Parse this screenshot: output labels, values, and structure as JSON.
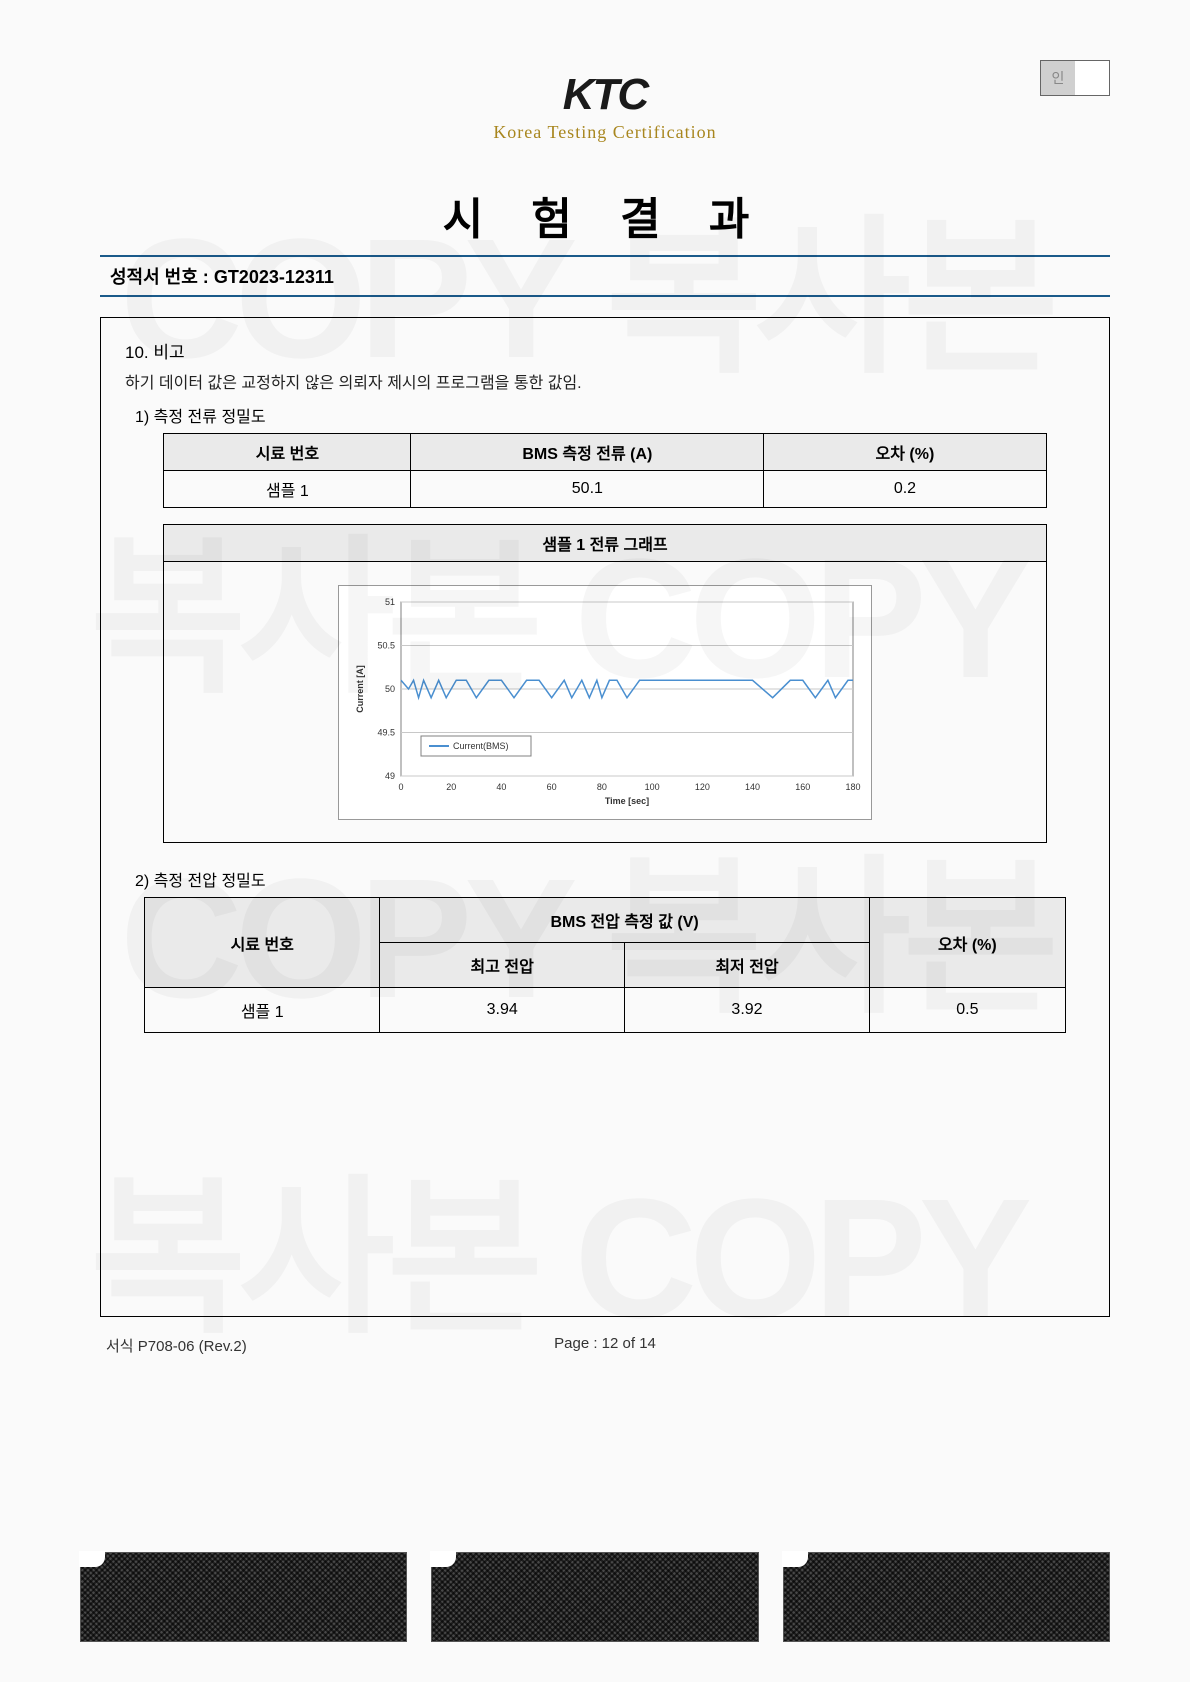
{
  "header": {
    "logo_main": "KTC",
    "logo_sub": "Korea Testing Certification",
    "stamp_label": "인"
  },
  "title": "시 험 결 과",
  "report": {
    "label": "성적서 번호 :",
    "number": "GT2023-12311"
  },
  "section10": {
    "heading": "10. 비고",
    "note": "하기 데이터 값은 교정하지 않은 의뢰자 제시의 프로그램을 통한 값임.",
    "sub1": {
      "title": "1) 측정 전류 정밀도",
      "table": {
        "headers": [
          "시료 번호",
          "BMS 측정 전류 (A)",
          "오차 (%)"
        ],
        "row": [
          "샘플 1",
          "50.1",
          "0.2"
        ]
      },
      "chart": {
        "title": "샘플 1 전류 그래프",
        "type": "line",
        "ylabel": "Current [A]",
        "xlabel": "Time [sec]",
        "xlim": [
          0,
          180
        ],
        "xticks": [
          0,
          20,
          40,
          60,
          80,
          100,
          120,
          140,
          160,
          180
        ],
        "ylim": [
          49,
          51
        ],
        "yticks": [
          49,
          49.5,
          50,
          50.5,
          51
        ],
        "legend": "Current(BMS)",
        "line_color": "#4a8fd0",
        "grid_color": "#c8c8c8",
        "axis_color": "#808080",
        "background_color": "#ffffff",
        "tick_fontsize": 9,
        "label_fontsize": 9,
        "legend_fontsize": 9,
        "series": [
          {
            "x": 0,
            "y": 50.1
          },
          {
            "x": 3,
            "y": 50.0
          },
          {
            "x": 5,
            "y": 50.1
          },
          {
            "x": 7,
            "y": 49.9
          },
          {
            "x": 9,
            "y": 50.1
          },
          {
            "x": 12,
            "y": 49.9
          },
          {
            "x": 15,
            "y": 50.1
          },
          {
            "x": 18,
            "y": 49.9
          },
          {
            "x": 22,
            "y": 50.1
          },
          {
            "x": 26,
            "y": 50.1
          },
          {
            "x": 30,
            "y": 49.9
          },
          {
            "x": 35,
            "y": 50.1
          },
          {
            "x": 40,
            "y": 50.1
          },
          {
            "x": 45,
            "y": 49.9
          },
          {
            "x": 50,
            "y": 50.1
          },
          {
            "x": 55,
            "y": 50.1
          },
          {
            "x": 60,
            "y": 49.9
          },
          {
            "x": 65,
            "y": 50.1
          },
          {
            "x": 68,
            "y": 49.9
          },
          {
            "x": 72,
            "y": 50.1
          },
          {
            "x": 75,
            "y": 49.9
          },
          {
            "x": 78,
            "y": 50.1
          },
          {
            "x": 80,
            "y": 49.9
          },
          {
            "x": 83,
            "y": 50.1
          },
          {
            "x": 86,
            "y": 50.1
          },
          {
            "x": 90,
            "y": 49.9
          },
          {
            "x": 95,
            "y": 50.1
          },
          {
            "x": 100,
            "y": 50.1
          },
          {
            "x": 110,
            "y": 50.1
          },
          {
            "x": 120,
            "y": 50.1
          },
          {
            "x": 130,
            "y": 50.1
          },
          {
            "x": 140,
            "y": 50.1
          },
          {
            "x": 148,
            "y": 49.9
          },
          {
            "x": 155,
            "y": 50.1
          },
          {
            "x": 160,
            "y": 50.1
          },
          {
            "x": 165,
            "y": 49.9
          },
          {
            "x": 170,
            "y": 50.1
          },
          {
            "x": 173,
            "y": 49.9
          },
          {
            "x": 178,
            "y": 50.1
          },
          {
            "x": 180,
            "y": 50.1
          }
        ]
      }
    },
    "sub2": {
      "title": "2) 측정 전압 정밀도",
      "table": {
        "h1": "시료 번호",
        "h2": "BMS 전압 측정 값 (V)",
        "h2a": "최고 전압",
        "h2b": "최저 전압",
        "h3": "오차 (%)",
        "row": [
          "샘플 1",
          "3.94",
          "3.92",
          "0.5"
        ]
      }
    }
  },
  "footer": {
    "form": "서식 P708-06 (Rev.2)",
    "page": "Page : 12 of 14"
  },
  "watermarks": [
    "COPY 복사본",
    "복사본 COPY",
    "COPY 복사본",
    "복사본 COPY"
  ]
}
